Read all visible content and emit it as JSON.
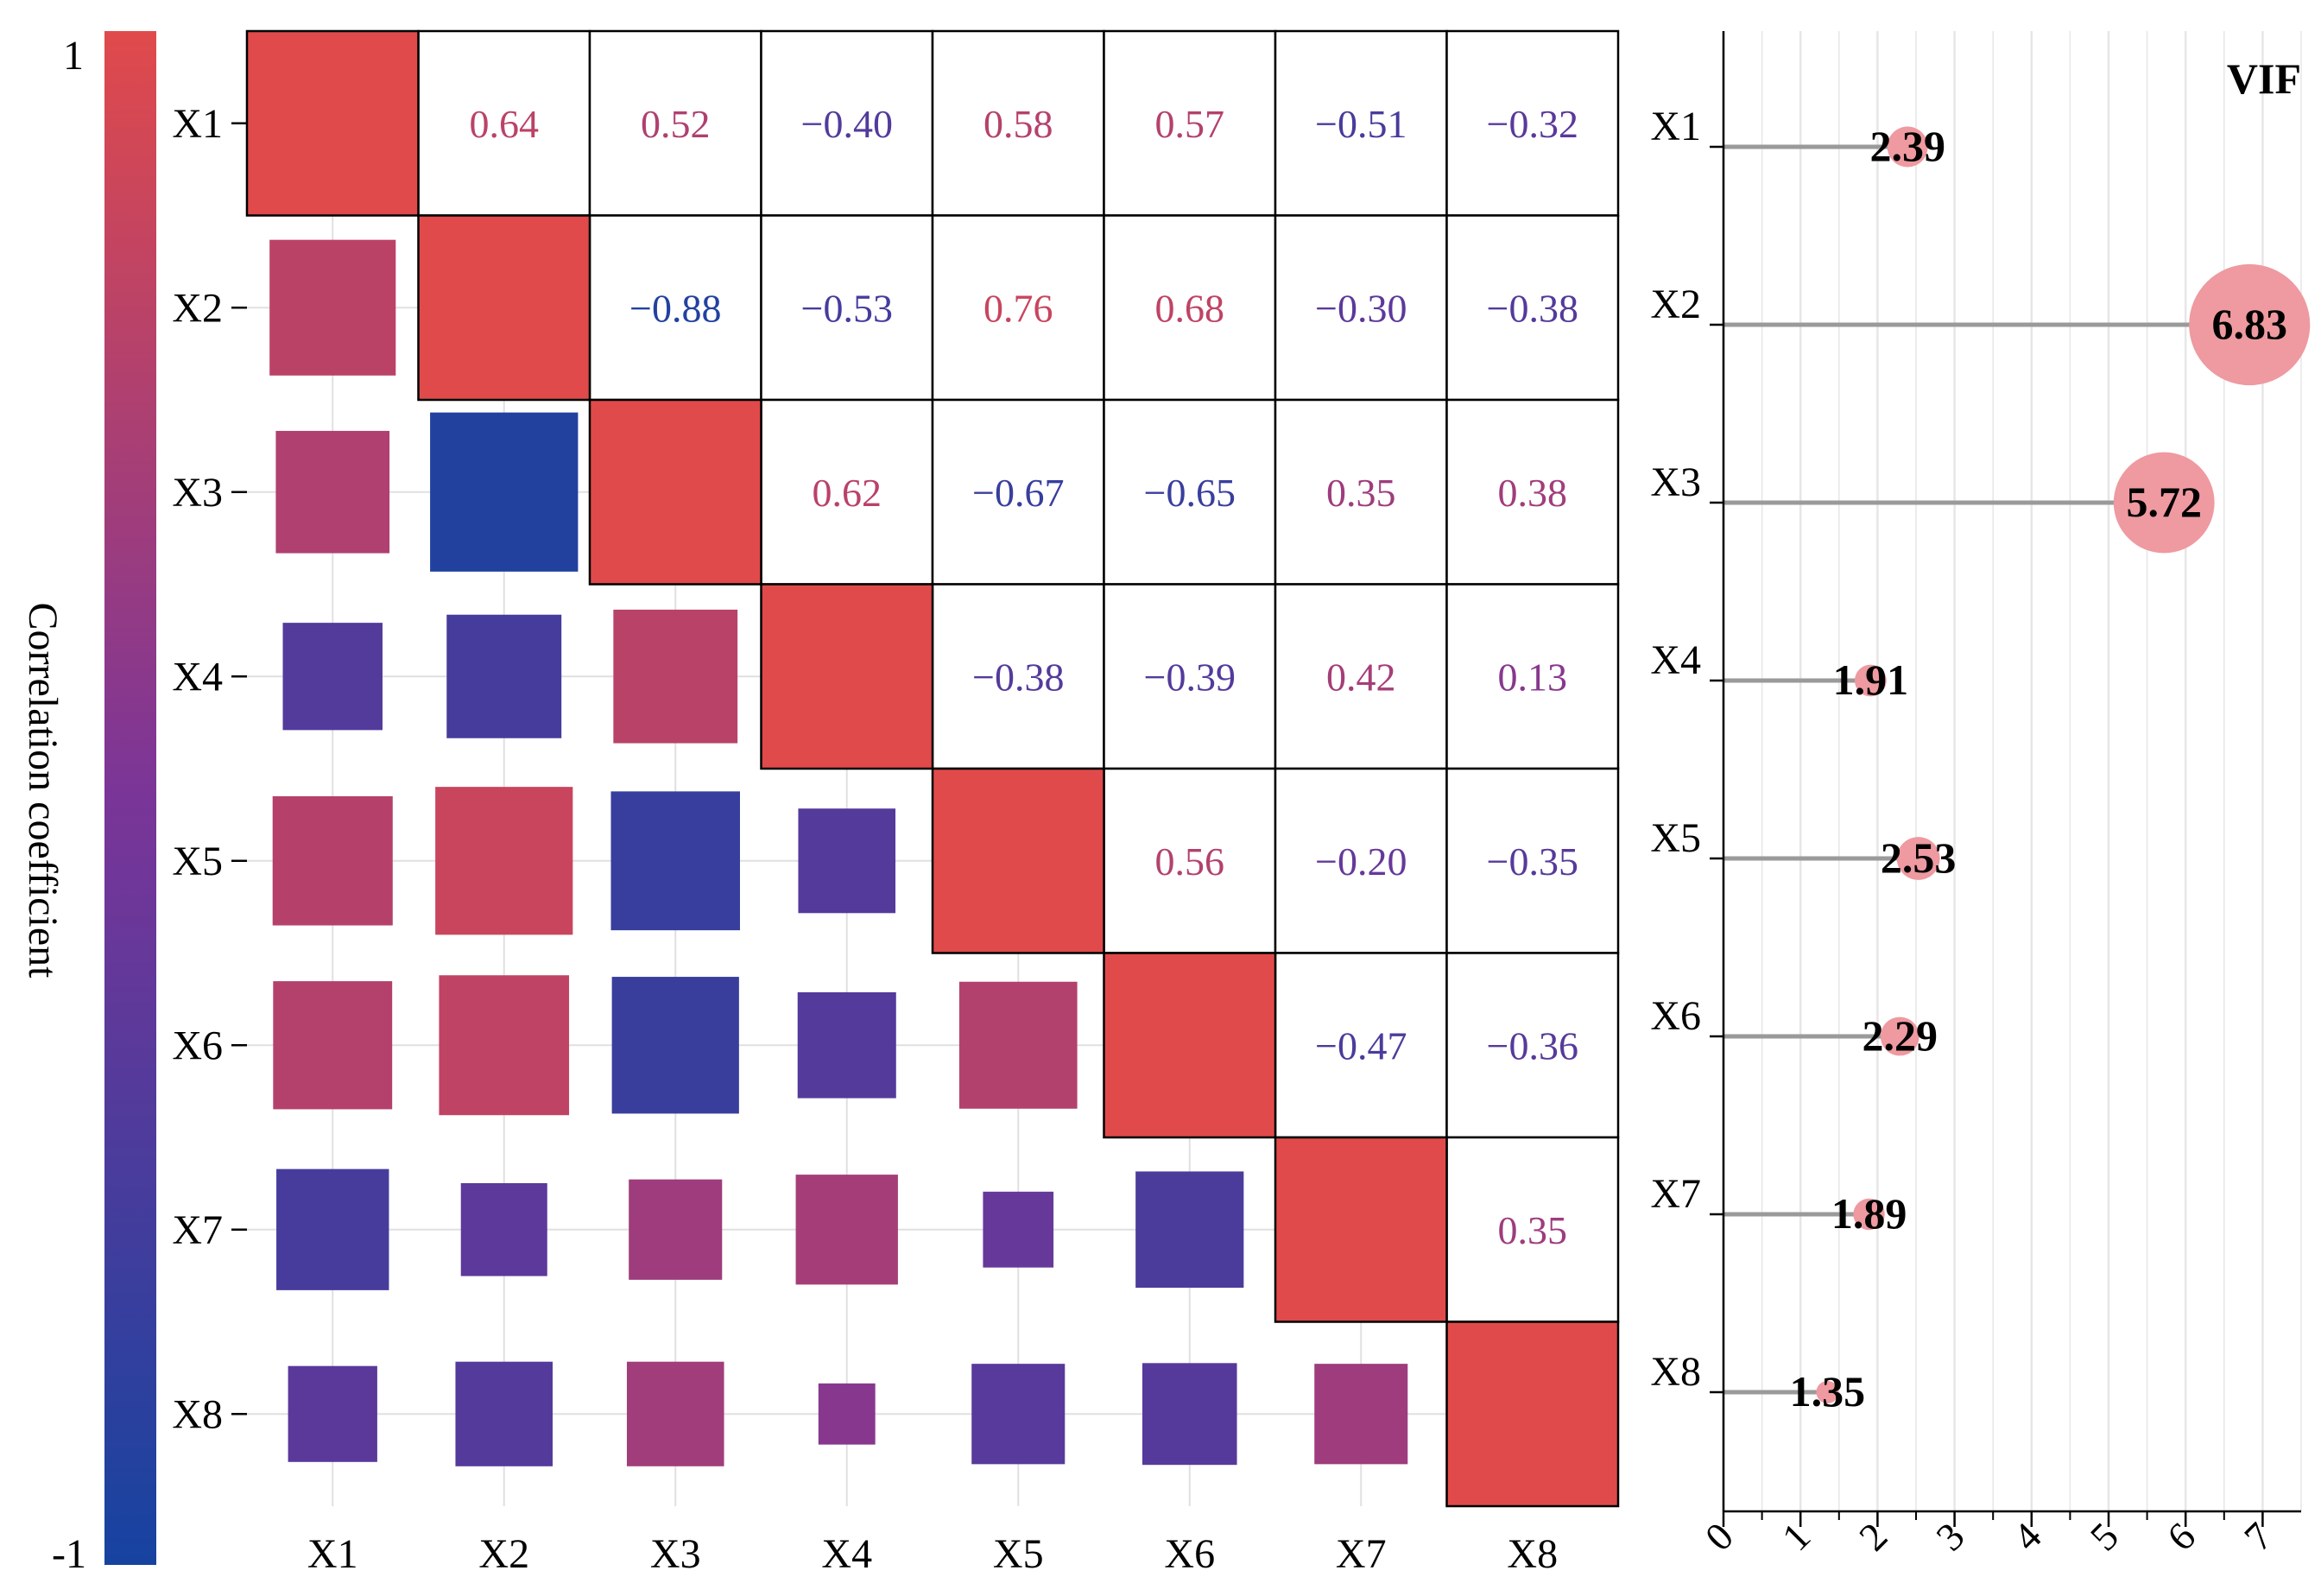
{
  "chart_data": [
    {
      "type": "heatmap",
      "subtype": "correlation-matrix",
      "variables": [
        "X1",
        "X2",
        "X3",
        "X4",
        "X5",
        "X6",
        "X7",
        "X8"
      ],
      "matrix": [
        [
          1.0,
          0.64,
          0.52,
          -0.4,
          0.58,
          0.57,
          -0.51,
          -0.32
        ],
        [
          0.64,
          1.0,
          -0.88,
          -0.53,
          0.76,
          0.68,
          -0.3,
          -0.38
        ],
        [
          0.52,
          -0.88,
          1.0,
          0.62,
          -0.67,
          -0.65,
          0.35,
          0.38
        ],
        [
          -0.4,
          -0.53,
          0.62,
          1.0,
          -0.38,
          -0.39,
          0.42,
          0.13
        ],
        [
          0.58,
          0.76,
          -0.67,
          -0.38,
          1.0,
          0.56,
          -0.2,
          -0.35
        ],
        [
          0.57,
          0.68,
          -0.65,
          -0.39,
          0.56,
          1.0,
          -0.47,
          -0.36
        ],
        [
          -0.51,
          -0.3,
          0.35,
          0.42,
          -0.2,
          -0.47,
          1.0,
          0.35
        ],
        [
          -0.32,
          -0.38,
          0.38,
          0.13,
          -0.35,
          -0.36,
          0.35,
          1.0
        ]
      ],
      "upper_labels": [
        [
          "",
          "0.64",
          "0.52",
          "−0.40",
          "0.58",
          "0.57",
          "−0.51",
          "−0.32"
        ],
        [
          "",
          "",
          "−0.88",
          "−0.53",
          "0.76",
          "0.68",
          "−0.30",
          "−0.38"
        ],
        [
          "",
          "",
          "",
          "0.62",
          "−0.67",
          "−0.65",
          "0.35",
          "0.38"
        ],
        [
          "",
          "",
          "",
          "",
          "−0.38",
          "−0.39",
          "0.42",
          "0.13"
        ],
        [
          "",
          "",
          "",
          "",
          "",
          "0.56",
          "−0.20",
          "−0.35"
        ],
        [
          "",
          "",
          "",
          "",
          "",
          "",
          "−0.47",
          "−0.36"
        ],
        [
          "",
          "",
          "",
          "",
          "",
          "",
          "",
          "0.35"
        ],
        [
          "",
          "",
          "",
          "",
          "",
          "",
          "",
          ""
        ]
      ],
      "lower_display": "squares sized by |r|",
      "colorbar": {
        "label": "Correlation coefficient",
        "max_label": "1",
        "min_label": "-1",
        "range": [
          -1,
          1
        ]
      },
      "colors": {
        "high": "#e04a4b",
        "mid": "#7a3598",
        "low": "#1643a0",
        "gridline": "#e0e0e0",
        "border": "#000000"
      }
    },
    {
      "type": "lollipop",
      "title": "VIF",
      "categories": [
        "X1",
        "X2",
        "X3",
        "X4",
        "X5",
        "X6",
        "X7",
        "X8"
      ],
      "values": [
        2.39,
        6.83,
        5.72,
        1.91,
        2.53,
        2.29,
        1.89,
        1.35
      ],
      "value_labels": [
        "2.39",
        "6.83",
        "5.72",
        "1.91",
        "2.53",
        "2.29",
        "1.89",
        "1.35"
      ],
      "xlim": [
        0,
        7.5
      ],
      "xticks": [
        "0",
        "1",
        "2",
        "3",
        "4",
        "5",
        "6",
        "7"
      ],
      "colors": {
        "stem": "#9a9a9a",
        "dot": "#ee9aa0",
        "gridline": "#e6e6e6"
      }
    }
  ]
}
